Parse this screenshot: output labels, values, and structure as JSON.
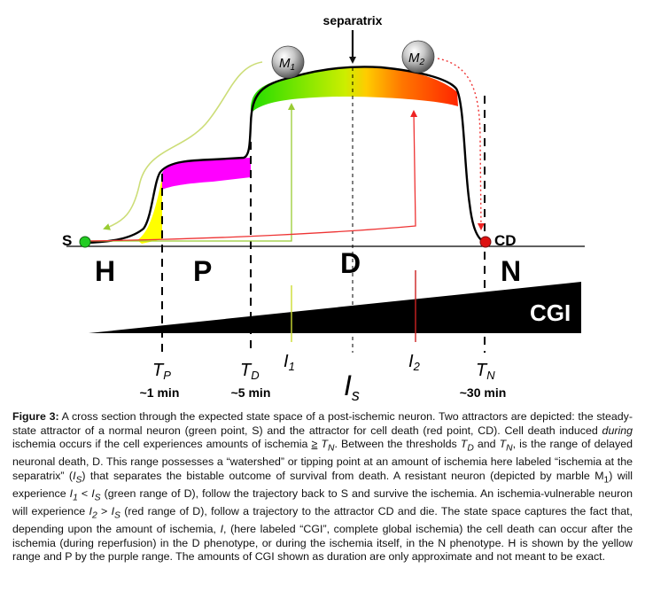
{
  "figure": {
    "labels": {
      "separatrix": "separatrix",
      "s": "S",
      "cd": "CD",
      "h": "H",
      "p": "P",
      "d": "D",
      "n": "N",
      "cgi": "CGI",
      "m1": "M",
      "m1_sub": "1",
      "m2": "M",
      "m2_sub": "2",
      "tp": "T",
      "tp_sub": "P",
      "td": "T",
      "td_sub": "D",
      "tn": "T",
      "tn_sub": "N",
      "i1": "I",
      "i1_sub": "1",
      "i2": "I",
      "i2_sub": "2",
      "is": "I",
      "is_sub": "s",
      "min1": "~1 min",
      "min5": "~5 min",
      "min30": "~30 min"
    },
    "colors": {
      "h_range": "#ffff00",
      "p_range": "#ff00ff",
      "d_green": "#22dd00",
      "d_red": "#ff2200",
      "s_point": "#22cc22",
      "cd_point": "#dd1111"
    }
  },
  "caption": {
    "label": "Figure 3:",
    "s1": " A cross section through the expected state space of a post-ischemic neuron. Two attractors are depicted: the steady-state attractor of a normal neuron (green point, S) and the attractor for cell death (red point, CD). Cell death induced ",
    "during": "during",
    "s2": " ischemia occurs if the cell experiences amounts of ischemia ",
    "ge": "≥",
    "t": " T",
    "t_sub": "N",
    "s3": ". Between the thresholds ",
    "td": "T",
    "td_sub": "D",
    "and": " and ",
    "tn": "T",
    "tn_sub": "N",
    "s4": ", is the range of delayed neuronal death, D. This range possesses a “watershed” or tipping point at an amount of ischemia here labeled “ischemia at the separatrix” (",
    "is": "I",
    "is_sub": "S",
    "s5": ") that separates the bistable outcome of survival from death. A resistant neuron (depicted by marble M",
    "m1_sub": "1",
    "s6": ") will experience ",
    "i1": "I",
    "i1_sub": "1",
    "lt": " < ",
    "is2": "I",
    "is2_sub": "S",
    "s7": " (green range of D), follow the trajectory back to S and survive the ischemia. An ischemia-vulnerable neuron will experience ",
    "i2": "I",
    "i2_sub": "2",
    "gt": " > ",
    "is3": "I",
    "is3_sub": "S",
    "s8": " (red range of D), follow a trajectory to the attractor CD and die. The state space captures the fact that, depending upon the amount of ischemia, ",
    "i": "I",
    "s9": ", (here labeled “CGI”, complete global ischemia) the cell death can occur after the ischemia (during reperfusion) in the D phenotype, or during the ischemia itself, in the N phenotype. H is shown by the yellow range and P by the purple range. The amounts of CGI shown as duration are only approximate and not meant to be exact."
  }
}
